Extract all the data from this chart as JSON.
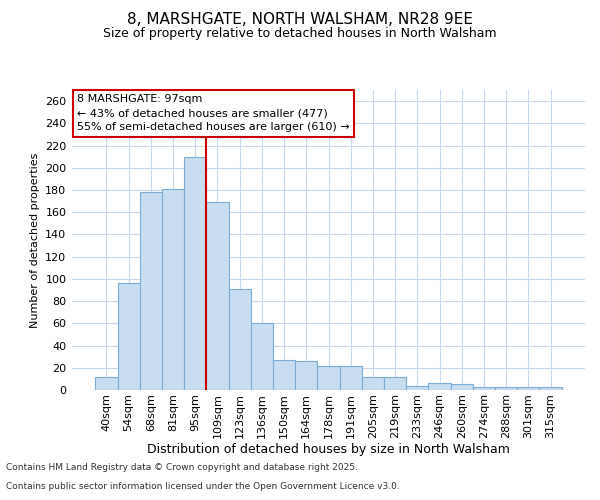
{
  "title_line1": "8, MARSHGATE, NORTH WALSHAM, NR28 9EE",
  "title_line2": "Size of property relative to detached houses in North Walsham",
  "xlabel": "Distribution of detached houses by size in North Walsham",
  "ylabel": "Number of detached properties",
  "bar_labels": [
    "40sqm",
    "54sqm",
    "68sqm",
    "81sqm",
    "95sqm",
    "109sqm",
    "123sqm",
    "136sqm",
    "150sqm",
    "164sqm",
    "178sqm",
    "191sqm",
    "205sqm",
    "219sqm",
    "233sqm",
    "246sqm",
    "260sqm",
    "274sqm",
    "288sqm",
    "301sqm",
    "315sqm"
  ],
  "bar_values": [
    12,
    96,
    178,
    181,
    210,
    169,
    91,
    60,
    27,
    26,
    22,
    22,
    12,
    12,
    4,
    6,
    5,
    3,
    3,
    3,
    3
  ],
  "bar_color": "#c8ddf0",
  "bar_edgecolor": "#7aaed6",
  "grid_color": "#c8d8ec",
  "annotation_text": "8 MARSHGATE: 97sqm\n← 43% of detached houses are smaller (477)\n55% of semi-detached houses are larger (610) →",
  "annotation_box_facecolor": "#ffffff",
  "annotation_box_edgecolor": "#cc0000",
  "redline_index": 4,
  "ylim": [
    0,
    270
  ],
  "yticks": [
    0,
    20,
    40,
    60,
    80,
    100,
    120,
    140,
    160,
    180,
    200,
    220,
    240,
    260
  ],
  "footnote1": "Contains HM Land Registry data © Crown copyright and database right 2025.",
  "footnote2": "Contains public sector information licensed under the Open Government Licence v3.0.",
  "bg_color": "#ffffff",
  "title1_fontsize": 11,
  "title2_fontsize": 9,
  "ylabel_fontsize": 8,
  "xlabel_fontsize": 9,
  "tick_fontsize": 8,
  "annot_fontsize": 8,
  "footnote_fontsize": 6.5
}
